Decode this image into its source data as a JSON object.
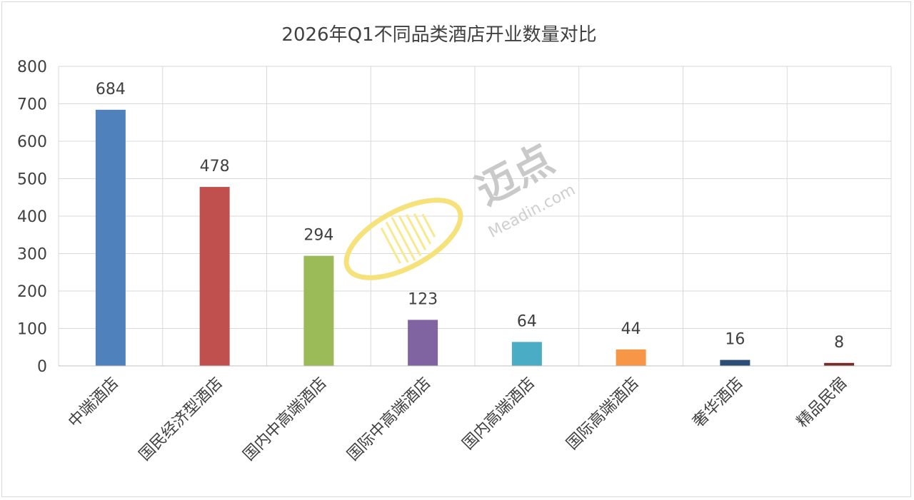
{
  "chart_data": {
    "type": "bar",
    "title": "2026年Q1不同品类酒店开业数量对比",
    "categories": [
      "中端酒店",
      "国民经济型酒店",
      "国内中高端酒店",
      "国际中高端酒店",
      "国内高端酒店",
      "国际高端酒店",
      "奢华酒店",
      "精品民宿"
    ],
    "values": [
      684,
      478,
      294,
      123,
      64,
      44,
      16,
      8
    ],
    "colors": [
      "#4f81bd",
      "#c0504d",
      "#9bbb59",
      "#8064a2",
      "#4bacc6",
      "#f79646",
      "#2c4d75",
      "#772c2a"
    ],
    "ylim": [
      0,
      800
    ],
    "yticks": [
      0,
      100,
      200,
      300,
      400,
      500,
      600,
      700,
      800
    ],
    "grid": true,
    "legend": "none",
    "data_labels": true
  },
  "watermark": {
    "text": "迈点",
    "subtext": "Meadin.com",
    "logo_color": "#f6e27a"
  }
}
